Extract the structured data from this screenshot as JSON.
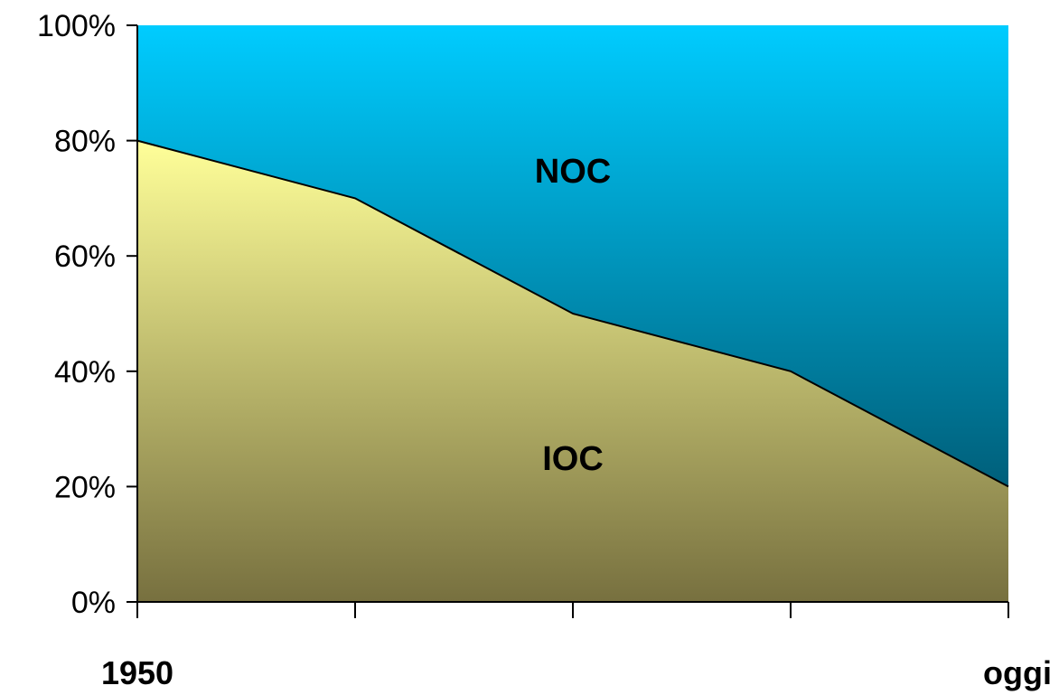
{
  "chart_data": {
    "type": "area",
    "stacked": "percent",
    "x": [
      0,
      1,
      2,
      3,
      4
    ],
    "x_labels": [
      "1950",
      "",
      "",
      "",
      "oggi"
    ],
    "series": [
      {
        "name": "IOC",
        "values": [
          80,
          70,
          50,
          40,
          20
        ]
      },
      {
        "name": "NOC",
        "values": [
          20,
          30,
          50,
          60,
          80
        ]
      }
    ],
    "ylim": [
      0,
      100
    ],
    "yticks": [
      "0%",
      "20%",
      "40%",
      "60%",
      "80%",
      "100%"
    ],
    "ytick_values": [
      0,
      20,
      40,
      60,
      80,
      100
    ],
    "grid": false,
    "legend": "none",
    "colors": {
      "ioc_top": "#FFFF99",
      "ioc_bottom": "#77703F",
      "noc_top": "#00CCFF",
      "noc_bottom": "#005F7A",
      "axis": "#000000"
    }
  }
}
